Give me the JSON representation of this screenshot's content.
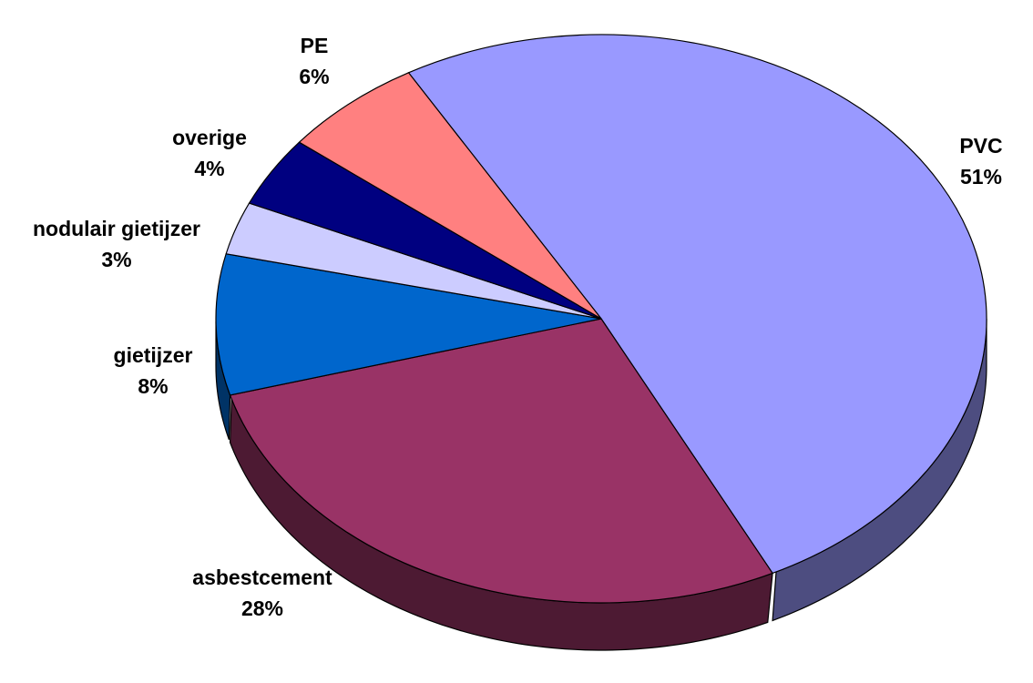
{
  "chart_data": {
    "type": "pie3d",
    "categories": [
      "PVC",
      "asbestcement",
      "gietijzer",
      "nodulair gietijzer",
      "overige",
      "PE"
    ],
    "values": [
      51,
      28,
      8,
      3,
      4,
      6
    ],
    "value_labels": [
      "51%",
      "28%",
      "8%",
      "3%",
      "4%",
      "6%"
    ],
    "colors": [
      "#9999ff",
      "#993366",
      "#0066cc",
      "#ccccff",
      "#000080",
      "#ff8080"
    ]
  }
}
